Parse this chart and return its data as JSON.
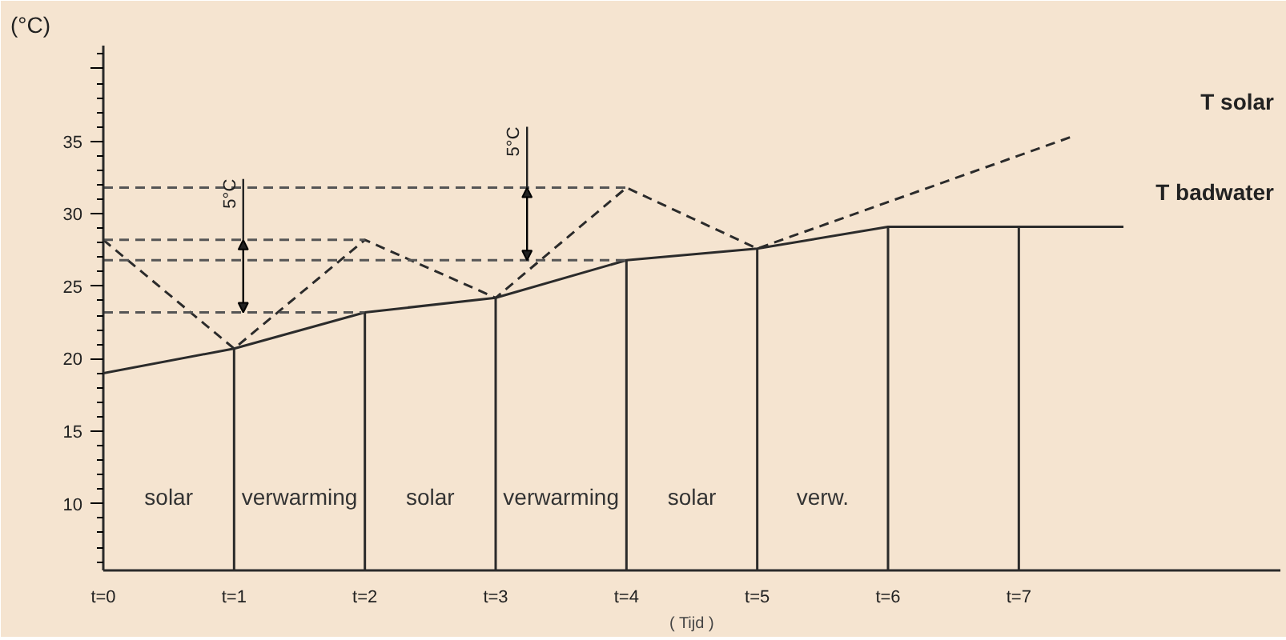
{
  "chart_data": {
    "type": "line",
    "ylabel": "(°C)",
    "xlabel": "( Tijd )",
    "xlim": [
      0,
      9
    ],
    "ylim": [
      5.4,
      41.6
    ],
    "xticks": [
      {
        "value": 0,
        "label": "t=0"
      },
      {
        "value": 1,
        "label": "t=1"
      },
      {
        "value": 2,
        "label": "t=2"
      },
      {
        "value": 3,
        "label": "t=3"
      },
      {
        "value": 4,
        "label": "t=4"
      },
      {
        "value": 5,
        "label": "t=5"
      },
      {
        "value": 6,
        "label": "t=6"
      },
      {
        "value": 7,
        "label": "t=7"
      }
    ],
    "yticks": [
      10,
      15,
      20,
      25,
      30,
      35,
      {
        "value": 40,
        "label": null
      }
    ],
    "grid": false,
    "marker": "none",
    "series": [
      {
        "name": "T badwater",
        "color": "#2b2b2b",
        "line_style": "solid",
        "x": [
          0,
          1,
          2,
          3,
          4,
          5,
          6,
          7,
          7.8
        ],
        "values": [
          19.0,
          20.7,
          23.2,
          24.2,
          26.8,
          27.6,
          29.1,
          29.1,
          29.1
        ]
      },
      {
        "name": "T solar",
        "color": "#2b2b2b",
        "line_style": "dashed",
        "x": [
          0,
          1,
          2,
          3,
          4,
          5,
          7.4
        ],
        "values": [
          28.2,
          20.7,
          28.2,
          24.2,
          31.8,
          27.6,
          35.3
        ]
      },
      {
        "color": "#555555",
        "line_style": "dashed",
        "x": [
          0,
          4
        ],
        "values": [
          31.8,
          31.8
        ]
      },
      {
        "color": "#555555",
        "line_style": "dashed",
        "x": [
          0,
          2
        ],
        "values": [
          28.2,
          28.2
        ]
      },
      {
        "color": "#555555",
        "line_style": "dashed",
        "x": [
          0,
          4
        ],
        "values": [
          26.8,
          26.8
        ]
      },
      {
        "color": "#555555",
        "line_style": "dashed",
        "x": [
          0,
          2
        ],
        "values": [
          23.2,
          23.2
        ]
      }
    ],
    "ref_lines": [
      {
        "axis": "x",
        "value": 1,
        "label": null
      },
      {
        "axis": "x",
        "value": 2,
        "label": null
      },
      {
        "axis": "x",
        "value": 3,
        "label": null
      },
      {
        "axis": "x",
        "value": 4,
        "label": null
      },
      {
        "axis": "x",
        "value": 5,
        "label": null
      },
      {
        "axis": "x",
        "value": 6,
        "label": null
      },
      {
        "axis": "x",
        "value": 7,
        "label": null
      }
    ],
    "annotations": [
      {
        "text": "5°C",
        "x": 1.07,
        "y": 28.2
      },
      {
        "text": "5°C",
        "x": 3.24,
        "y": 31.8
      },
      "solar",
      "verwarming",
      "solar",
      "verwarming",
      "solar",
      "verw."
    ]
  }
}
